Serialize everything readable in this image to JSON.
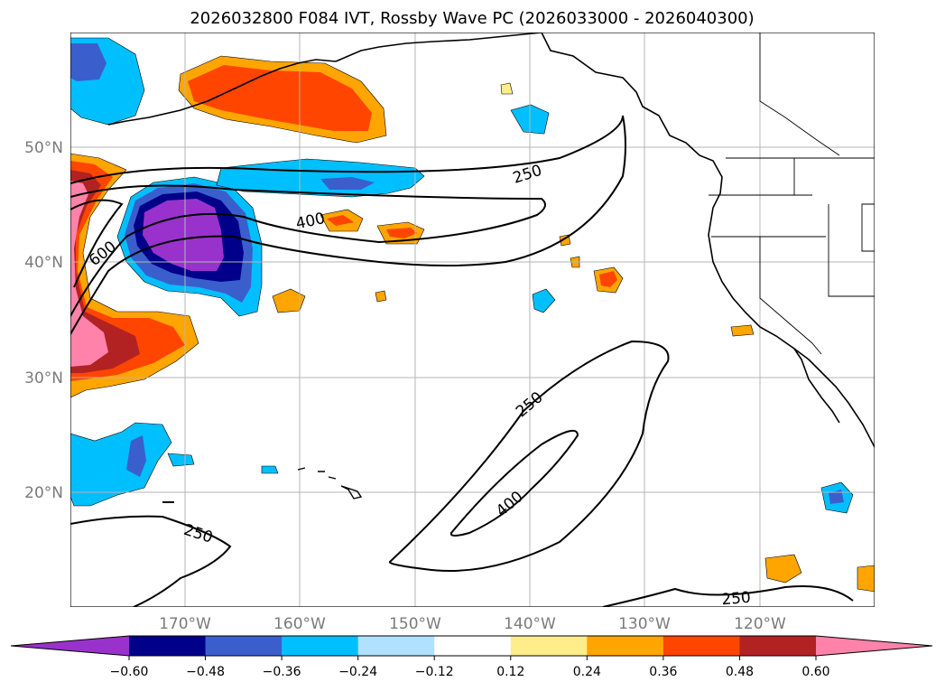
{
  "title": "2026032800 F084 IVT, Rossby Wave PC (2026033000 - 2026040300)",
  "map": {
    "projection": "cylindrical",
    "lon_range": [
      -180,
      -110
    ],
    "lat_range": [
      10,
      60
    ],
    "lat_labels": [
      {
        "value": 50,
        "text": "50°N"
      },
      {
        "value": 40,
        "text": "40°N"
      },
      {
        "value": 30,
        "text": "30°N"
      },
      {
        "value": 20,
        "text": "20°N"
      }
    ],
    "lon_labels": [
      {
        "value": -170,
        "text": "170°W"
      },
      {
        "value": -160,
        "text": "160°W"
      },
      {
        "value": -150,
        "text": "150°W"
      },
      {
        "value": -140,
        "text": "140°W"
      },
      {
        "value": -130,
        "text": "130°W"
      },
      {
        "value": -120,
        "text": "120°W"
      }
    ],
    "gridlines": true,
    "land_fill": "none",
    "coastline_color": "#000000"
  },
  "colorbar": {
    "levels": [
      -0.6,
      -0.48,
      -0.36,
      -0.24,
      -0.12,
      0.12,
      0.24,
      0.36,
      0.48,
      0.6
    ],
    "tick_labels": [
      "−0.60",
      "−0.48",
      "−0.36",
      "−0.24",
      "−0.12",
      "0.12",
      "0.24",
      "0.36",
      "0.48",
      "0.60"
    ],
    "colors": [
      "#9932cc",
      "#00008b",
      "#3a5fcd",
      "#00bfff",
      "#b0e2ff",
      "#ffffff",
      "#ffec8b",
      "#ffa500",
      "#ff4500",
      "#b22222",
      "#ff82ab"
    ],
    "extend": "both"
  },
  "ivt_contours": {
    "levels": [
      250,
      400,
      600
    ],
    "labels_shown": [
      "250",
      "400",
      "600",
      "250",
      "400",
      "250",
      "250"
    ]
  }
}
